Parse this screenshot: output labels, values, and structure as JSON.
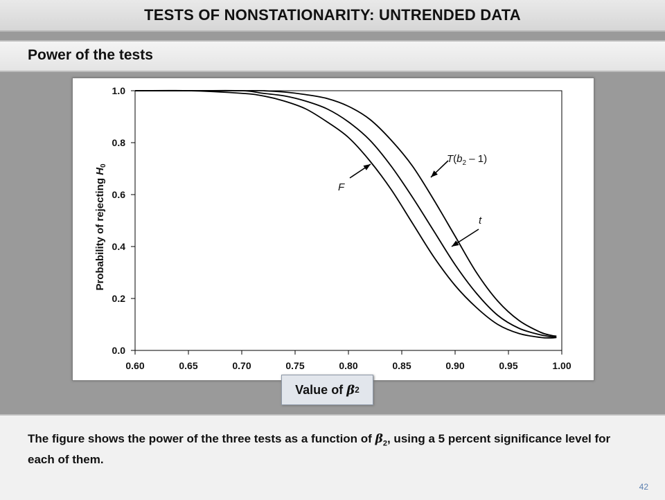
{
  "header": {
    "title": "TESTS OF NONSTATIONARITY: UNTRENDED DATA"
  },
  "subheader": {
    "title": "Power of the tests"
  },
  "xlabel_box": {
    "text": "Value of ",
    "symbol": "β",
    "subscript": "2"
  },
  "footer": {
    "caption_before": "The figure shows the power of the three tests as a function of ",
    "caption_symbol": "β",
    "caption_subscript": "2",
    "caption_after": ", using a 5 percent significance level for each of them.",
    "page_number": "42"
  },
  "chart_data": {
    "type": "line",
    "ylabel": "Probability of rejecting H0",
    "xlim": [
      0.6,
      1.0
    ],
    "ylim": [
      0.0,
      1.0
    ],
    "x_ticks": [
      "0.60",
      "0.65",
      "0.70",
      "0.75",
      "0.80",
      "0.85",
      "0.90",
      "0.95",
      "1.00"
    ],
    "y_ticks": [
      "0.0",
      "0.2",
      "0.4",
      "0.6",
      "0.8",
      "1.0"
    ],
    "grid": false,
    "series": [
      {
        "name": "F",
        "x": [
          0.6,
          0.65,
          0.7,
          0.72,
          0.74,
          0.76,
          0.78,
          0.8,
          0.82,
          0.84,
          0.86,
          0.88,
          0.9,
          0.92,
          0.94,
          0.96,
          0.98,
          0.99,
          0.995
        ],
        "y": [
          1.0,
          1.0,
          0.99,
          0.98,
          0.96,
          0.93,
          0.88,
          0.82,
          0.73,
          0.62,
          0.49,
          0.36,
          0.25,
          0.165,
          0.1,
          0.065,
          0.05,
          0.048,
          0.05
        ]
      },
      {
        "name": "t",
        "x": [
          0.6,
          0.65,
          0.7,
          0.72,
          0.74,
          0.76,
          0.78,
          0.8,
          0.82,
          0.84,
          0.86,
          0.88,
          0.9,
          0.92,
          0.94,
          0.96,
          0.98,
          0.99,
          0.995
        ],
        "y": [
          1.0,
          1.0,
          1.0,
          0.99,
          0.98,
          0.96,
          0.93,
          0.88,
          0.81,
          0.71,
          0.59,
          0.46,
          0.33,
          0.22,
          0.135,
          0.085,
          0.06,
          0.053,
          0.05
        ]
      },
      {
        "name": "T(b2 – 1)",
        "x": [
          0.6,
          0.65,
          0.7,
          0.72,
          0.74,
          0.76,
          0.78,
          0.8,
          0.82,
          0.84,
          0.86,
          0.88,
          0.9,
          0.92,
          0.94,
          0.96,
          0.98,
          0.99,
          0.995
        ],
        "y": [
          1.0,
          1.0,
          1.0,
          1.0,
          0.995,
          0.985,
          0.97,
          0.94,
          0.89,
          0.81,
          0.71,
          0.58,
          0.44,
          0.3,
          0.19,
          0.115,
          0.07,
          0.058,
          0.055
        ]
      }
    ],
    "annotations": [
      {
        "text": "F",
        "series": "F"
      },
      {
        "text": "t",
        "series": "t"
      },
      {
        "text": "T(b2 – 1)",
        "series": "T(b2 – 1)"
      }
    ]
  }
}
